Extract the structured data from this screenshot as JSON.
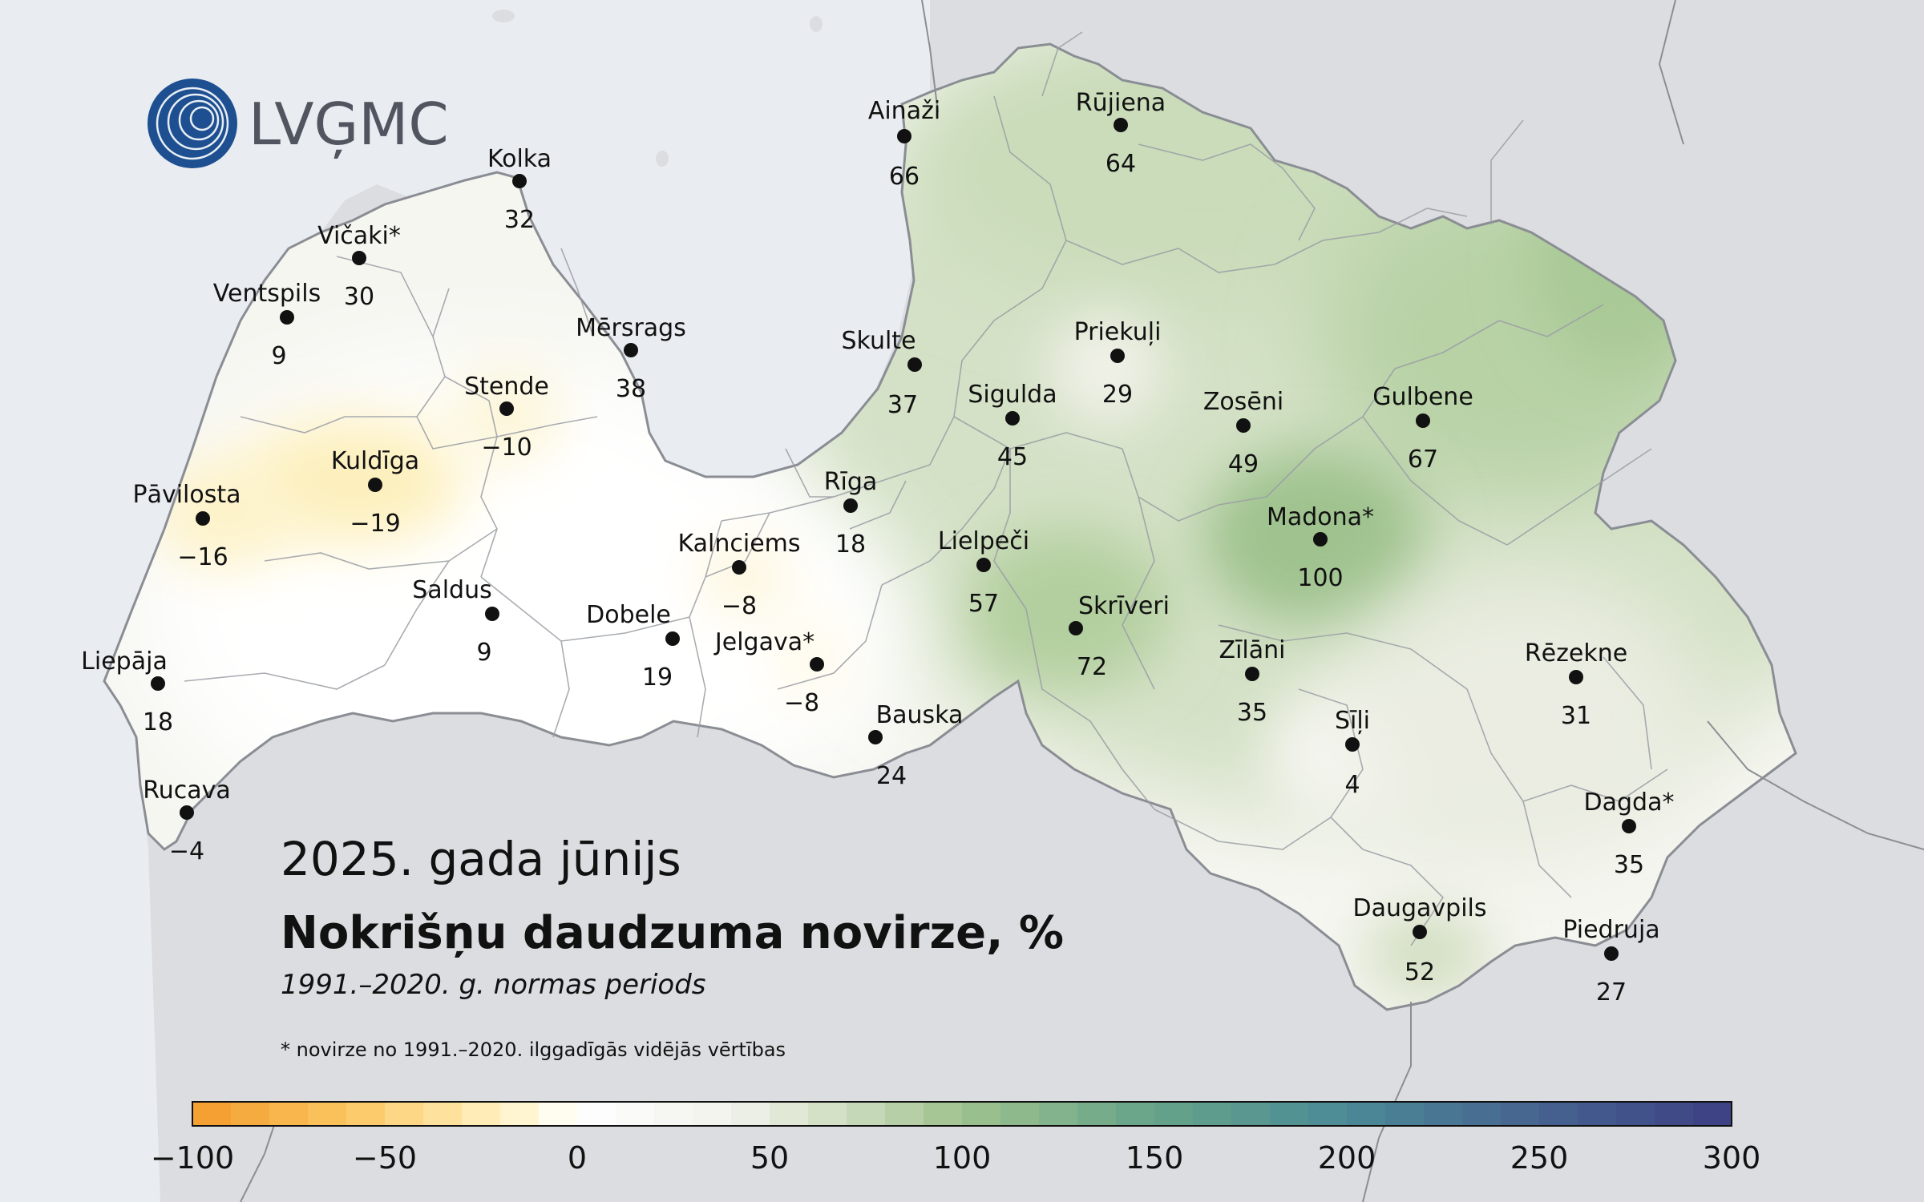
{
  "logo": {
    "text": "LVĢMC",
    "icon": "lvgmc-circles-logo-icon"
  },
  "title": {
    "period": "2025. gada jūnijs",
    "main": "Nokrišņu daudzuma novirze, %",
    "subtitle": "1991.–2020. g. normas periods",
    "footnote": "* novirze no 1991.–2020. ilggadīgās vidējās vērtības"
  },
  "colors": {
    "sea": "#e9edf1",
    "land_outside": "#dcdde0",
    "border": "#8a8e94"
  },
  "stations": [
    {
      "name": "Ainaži",
      "value": "66"
    },
    {
      "name": "Rūjiena",
      "value": "64"
    },
    {
      "name": "Kolka",
      "value": "32"
    },
    {
      "name": "Vičaki*",
      "value": "30"
    },
    {
      "name": "Ventspils",
      "value": "9"
    },
    {
      "name": "Mērsrags",
      "value": "38"
    },
    {
      "name": "Skulte",
      "value": "37"
    },
    {
      "name": "Priekuļi",
      "value": "29"
    },
    {
      "name": "Stende",
      "value": "−10"
    },
    {
      "name": "Sigulda",
      "value": "45"
    },
    {
      "name": "Zosēni",
      "value": "49"
    },
    {
      "name": "Gulbene",
      "value": "67"
    },
    {
      "name": "Kuldīga",
      "value": "−19"
    },
    {
      "name": "Pāvilosta",
      "value": "−16"
    },
    {
      "name": "Rīga",
      "value": "18"
    },
    {
      "name": "Madona*",
      "value": "100"
    },
    {
      "name": "Kalnciems",
      "value": "−8"
    },
    {
      "name": "Lielpeči",
      "value": "57"
    },
    {
      "name": "Saldus",
      "value": "9"
    },
    {
      "name": "Skrīveri",
      "value": "72"
    },
    {
      "name": "Dobele",
      "value": "19"
    },
    {
      "name": "Jelgava*",
      "value": "−8"
    },
    {
      "name": "Zīlāni",
      "value": "35"
    },
    {
      "name": "Rēzekne",
      "value": "31"
    },
    {
      "name": "Liepāja",
      "value": "18"
    },
    {
      "name": "Bauska",
      "value": "24"
    },
    {
      "name": "Sīļi",
      "value": "4"
    },
    {
      "name": "Rucava",
      "value": "−4"
    },
    {
      "name": "Dagda*",
      "value": "35"
    },
    {
      "name": "Daugavpils",
      "value": "52"
    },
    {
      "name": "Piedruja",
      "value": "27"
    }
  ],
  "legend": {
    "min": -100,
    "max": 300,
    "step": 10,
    "ticks": [
      "−100",
      "−50",
      "0",
      "50",
      "100",
      "150",
      "200",
      "250",
      "300"
    ],
    "stops": [
      {
        "value": -100,
        "color": "#f39a2c"
      },
      {
        "value": -60,
        "color": "#fbc760"
      },
      {
        "value": -20,
        "color": "#fff1c2"
      },
      {
        "value": 0,
        "color": "#ffffff"
      },
      {
        "value": 40,
        "color": "#f1f2ec"
      },
      {
        "value": 60,
        "color": "#dce5cf"
      },
      {
        "value": 100,
        "color": "#9fc28e"
      },
      {
        "value": 150,
        "color": "#66a389"
      },
      {
        "value": 200,
        "color": "#4b8a97"
      },
      {
        "value": 250,
        "color": "#46638f"
      },
      {
        "value": 300,
        "color": "#3c3f84"
      }
    ]
  }
}
